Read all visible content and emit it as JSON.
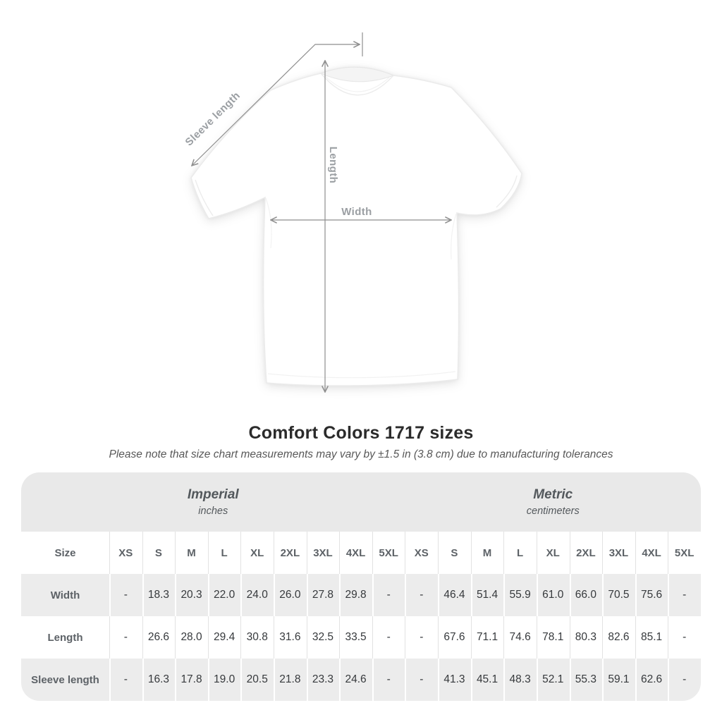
{
  "diagram": {
    "sleeve_length_label": "Sleeve length",
    "length_label": "Length",
    "width_label": "Width"
  },
  "title": "Comfort Colors 1717 sizes",
  "subtitle": "Please note that size chart measurements may vary by ±1.5 in (3.8 cm) due to manufacturing tolerances",
  "colors": {
    "group_header_bg": "#e9e9e9",
    "row_alt_bg": "#ececec",
    "value_text": "#36393c",
    "header_text": "#5d6267",
    "annotation": "#9b9fa3"
  },
  "table": {
    "size_header": "Size",
    "groups": [
      {
        "label": "Imperial",
        "sublabel": "inches"
      },
      {
        "label": "Metric",
        "sublabel": "centimeters"
      }
    ],
    "sizes": [
      "XS",
      "S",
      "M",
      "L",
      "XL",
      "2XL",
      "3XL",
      "4XL",
      "5XL"
    ],
    "rows": [
      {
        "label": "Width",
        "imperial": [
          "-",
          "18.3",
          "20.3",
          "22.0",
          "24.0",
          "26.0",
          "27.8",
          "29.8",
          "-"
        ],
        "metric": [
          "-",
          "46.4",
          "51.4",
          "55.9",
          "61.0",
          "66.0",
          "70.5",
          "75.6",
          "-"
        ]
      },
      {
        "label": "Length",
        "imperial": [
          "-",
          "26.6",
          "28.0",
          "29.4",
          "30.8",
          "31.6",
          "32.5",
          "33.5",
          "-"
        ],
        "metric": [
          "-",
          "67.6",
          "71.1",
          "74.6",
          "78.1",
          "80.3",
          "82.6",
          "85.1",
          "-"
        ]
      },
      {
        "label": "Sleeve length",
        "imperial": [
          "-",
          "16.3",
          "17.8",
          "19.0",
          "20.5",
          "21.8",
          "23.3",
          "24.6",
          "-"
        ],
        "metric": [
          "-",
          "41.3",
          "45.1",
          "48.3",
          "52.1",
          "55.3",
          "59.1",
          "62.6",
          "-"
        ]
      }
    ]
  }
}
